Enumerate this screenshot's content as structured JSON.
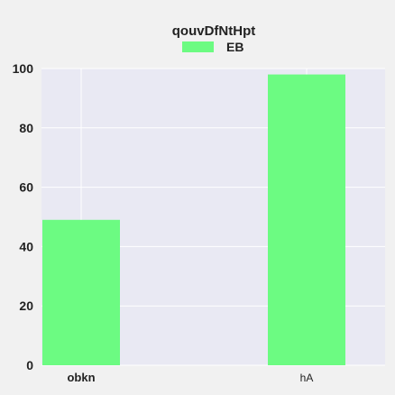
{
  "chart_data": {
    "type": "bar",
    "title": "qouvDfNtHpt",
    "categories": [
      "obkn",
      "hA"
    ],
    "category_weights": [
      "bold",
      "normal"
    ],
    "series": [
      {
        "name": "EB",
        "values": [
          49,
          98
        ],
        "color": "#6cfb82"
      }
    ],
    "ylim": [
      0,
      100
    ],
    "yticks": [
      "0",
      "20",
      "40",
      "60",
      "80",
      "100"
    ],
    "grid": true,
    "legend_position": "top-center",
    "colors": {
      "background": "#f1f1f1",
      "plot_background": "#e9e9f3",
      "grid": "#ffffff",
      "text": "#222222"
    }
  }
}
